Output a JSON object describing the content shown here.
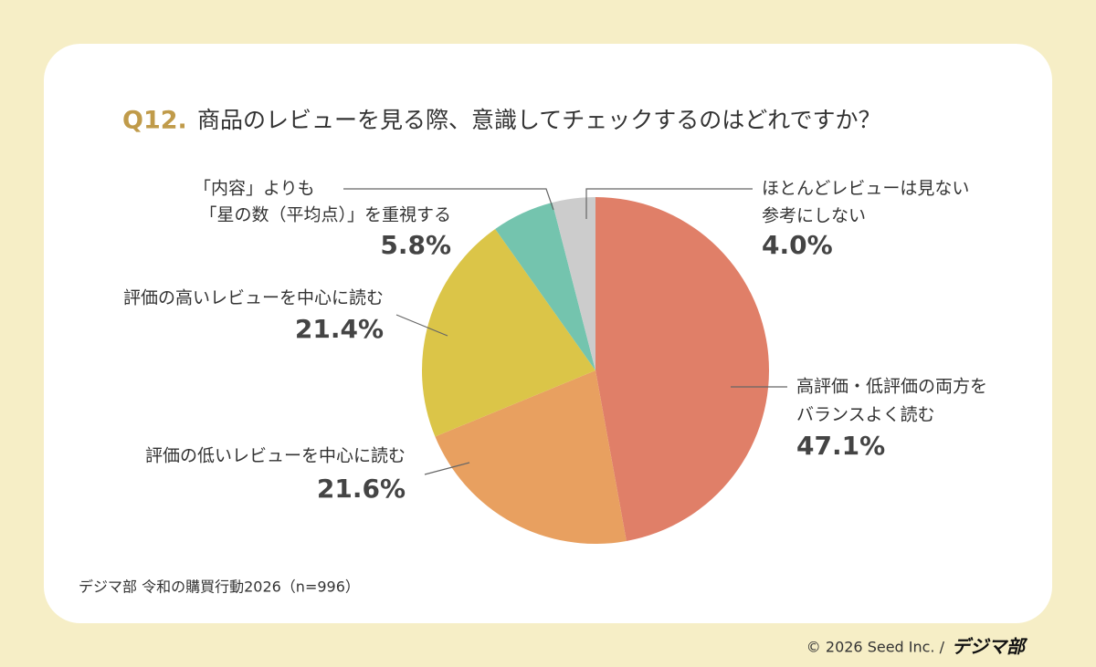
{
  "chart_data": {
    "type": "pie",
    "question_number": "Q12.",
    "title": "商品のレビューを見る際、意識してチェックするのはどれですか？",
    "categories": [
      [
        "高評価・低評価の両方を",
        "バランスよく読む"
      ],
      [
        "評価の低いレビューを中心に読む"
      ],
      [
        "評価の高いレビューを中心に読む"
      ],
      [
        "「内容」よりも",
        "「星の数（平均点）」を重視する"
      ],
      [
        "ほとんどレビューは見ない",
        "参考にしない"
      ]
    ],
    "values": [
      47.1,
      21.6,
      21.4,
      5.8,
      4.0
    ],
    "value_labels": [
      "47.1%",
      "21.6%",
      "21.4%",
      "5.8%",
      "4.0%"
    ],
    "colors": [
      "#e07f68",
      "#e8a060",
      "#dbc548",
      "#74c4ae",
      "#cccccc"
    ],
    "source": "デジマ部 令和の購買行動2026（n=996）",
    "copyright": "© 2026 Seed Inc. /",
    "logo": "デジマ部"
  }
}
